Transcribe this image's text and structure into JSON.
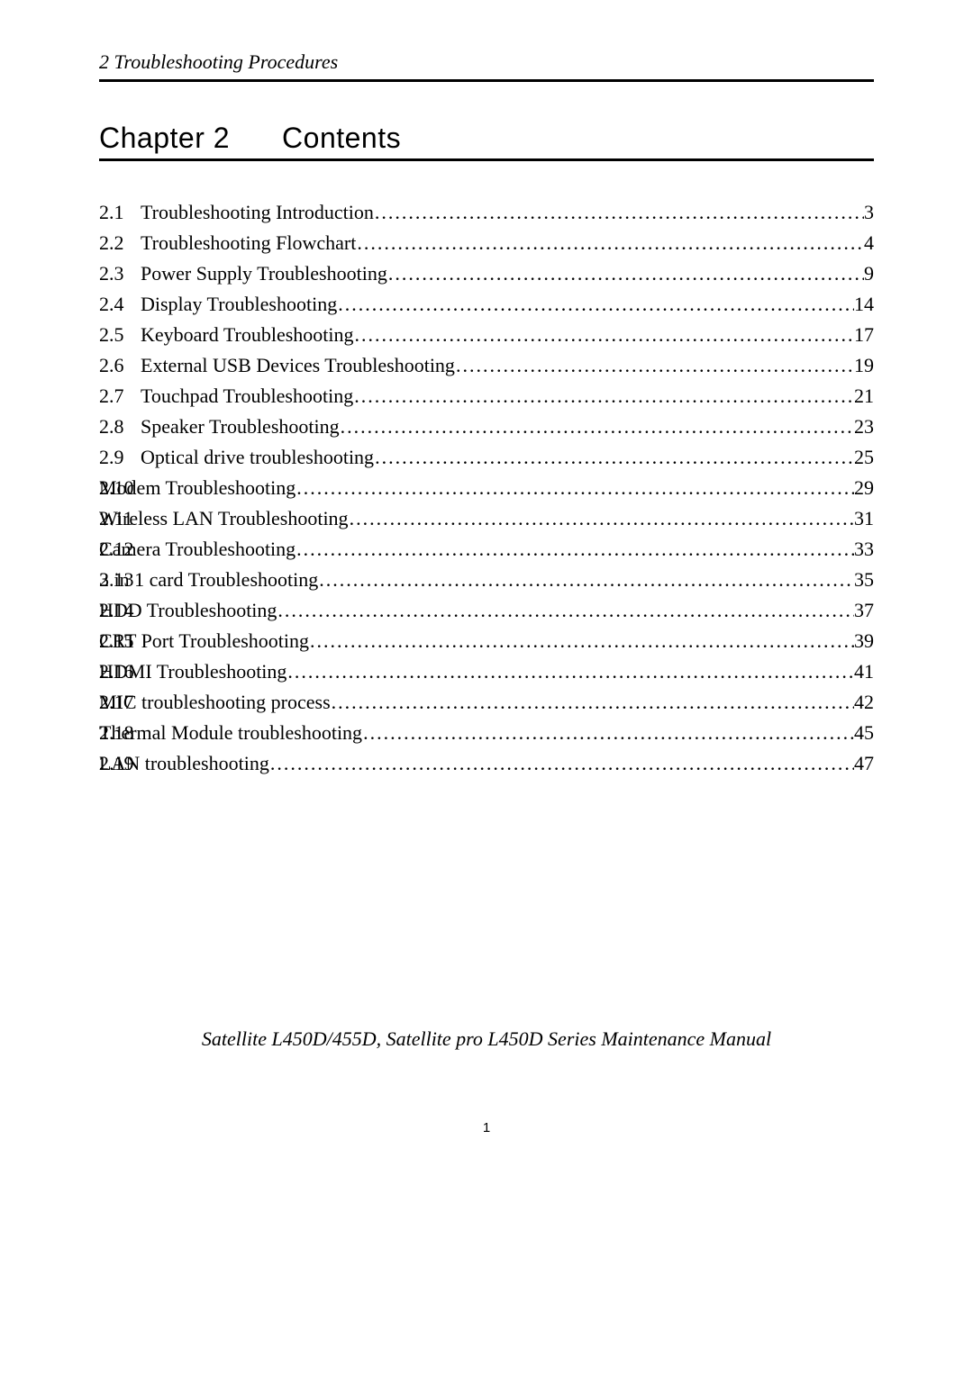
{
  "header": {
    "text": "2 Troubleshooting Procedures"
  },
  "chapter": {
    "label": "Chapter 2",
    "contents_label": "Contents"
  },
  "toc": [
    {
      "num": "2.1",
      "title": "Troubleshooting Introduction ",
      "page": "3",
      "style": "wide"
    },
    {
      "num": "2.2",
      "title": "Troubleshooting Flowchart",
      "page": "4",
      "style": "wide"
    },
    {
      "num": "2.3",
      "title": "Power Supply Troubleshooting",
      "page": "9",
      "style": "wide"
    },
    {
      "num": "2.4",
      "title": "Display Troubleshooting",
      "page": "14",
      "style": "wide"
    },
    {
      "num": "2.5",
      "title": "Keyboard Troubleshooting ",
      "page": "17",
      "style": "wide"
    },
    {
      "num": "2.6",
      "title": "External USB Devices Troubleshooting",
      "page": "19",
      "style": "wide"
    },
    {
      "num": "2.7",
      "title": "Touchpad Troubleshooting ",
      "page": "21",
      "style": "wide"
    },
    {
      "num": "2.8",
      "title": "Speaker Troubleshooting ",
      "page": "23",
      "style": "wide"
    },
    {
      "num": "2.9",
      "title": "Optical drive troubleshooting ",
      "page": "25",
      "style": "wide"
    },
    {
      "num": "2.10 ",
      "title": "Modem Troubleshooting",
      "page": "29",
      "style": "narrow"
    },
    {
      "num": "2.11 ",
      "title": "Wireless LAN Troubleshooting",
      "page": "31",
      "style": "narrow"
    },
    {
      "num": "2.12 ",
      "title": "Camera Troubleshooting",
      "page": "33",
      "style": "narrow"
    },
    {
      "num": "2.13 ",
      "title": "3 in 1 card Troubleshooting ",
      "page": "35",
      "style": "narrow"
    },
    {
      "num": "2.14 ",
      "title": "HDD Troubleshooting ",
      "page": "37",
      "style": "narrow"
    },
    {
      "num": "2.15 ",
      "title": "CRT Port Troubleshooting",
      "page": "39",
      "style": "narrow"
    },
    {
      "num": "2.16 ",
      "title": "HDMI Troubleshooting ",
      "page": "41",
      "style": "narrow"
    },
    {
      "num": "2.17 ",
      "title": "MIC troubleshooting process ",
      "page": " 42",
      "style": "narrow"
    },
    {
      "num": "2.18 ",
      "title": "Thermal Module troubleshooting ",
      "page": "45",
      "style": "narrow"
    },
    {
      "num": "2.19 ",
      "title": "LAN troubleshooting ",
      "page": "47",
      "style": "narrow"
    }
  ],
  "footer": {
    "manual_title": "Satellite L450D/455D, Satellite pro L450D Series Maintenance Manual",
    "page_number": "1"
  },
  "leader_dots": "........................................................................................................................................................................................................"
}
